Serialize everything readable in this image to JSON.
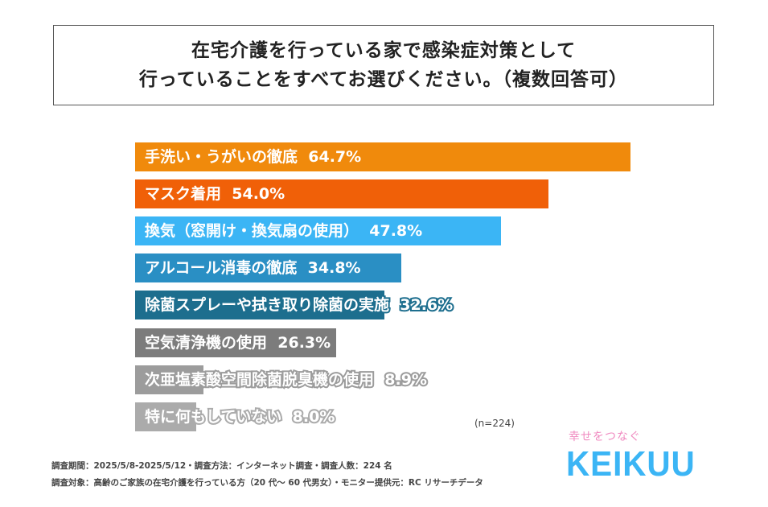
{
  "chart_data": {
    "type": "bar",
    "orientation": "horizontal",
    "title_lines": [
      "在宅介護を行っている家で感染症対策として",
      "行っていることをすべてお選びください。（複数回答可）"
    ],
    "categories": [
      "手洗い・うがいの徹底",
      "マスク着用",
      "換気（窓開け・換気扇の使用）",
      "アルコール消毒の徹底",
      "除菌スプレーや拭き取り除菌の実施",
      "空気清浄機の使用",
      "次亜塩素酸空間除菌脱臭機の使用",
      "特に何もしていない"
    ],
    "values": [
      64.7,
      54.0,
      47.8,
      34.8,
      32.6,
      26.3,
      8.9,
      8.0
    ],
    "value_labels": [
      "64.7%",
      "54.0%",
      "47.8%",
      "34.8%",
      "32.6%",
      "26.3%",
      "8.9%",
      "8.0%"
    ],
    "colors": [
      "#F08A0C",
      "#F06008",
      "#3BB5F5",
      "#2A8FC4",
      "#1D6E8E",
      "#7C7C7C",
      "#9C9C9C",
      "#ABABAB"
    ],
    "unit": "%",
    "xlim": [
      0,
      100
    ],
    "grid": false,
    "n_label": "(n=224)"
  },
  "footnotes": [
    "調査期間：2025/5/8-2025/5/12・調査方法：インターネット調査・調査人数：224 名",
    "調査対象：高齢のご家族の在宅介護を行っている方（20 代～ 60 代男女）・モニター提供元：RC リサーチデータ"
  ],
  "logo": {
    "tagline": "幸せをつなぐ",
    "name": "KEIKUU"
  }
}
